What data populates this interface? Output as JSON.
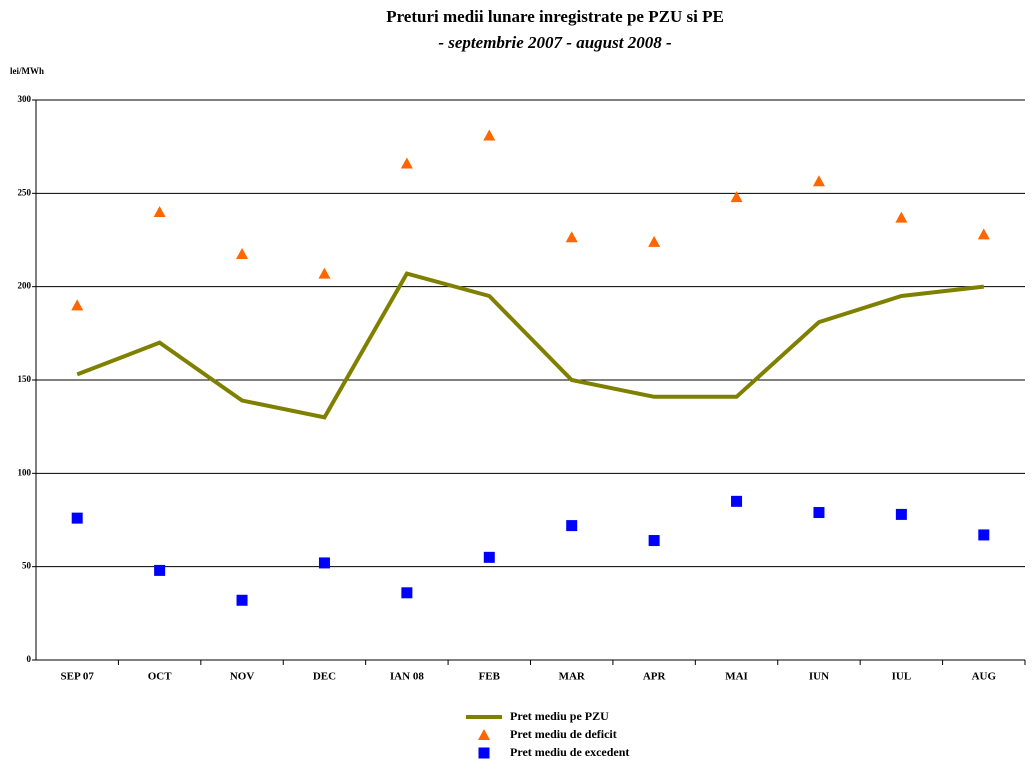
{
  "chart_data": {
    "type": "line",
    "title": "Preturi medii lunare inregistrate pe PZU si PE",
    "subtitle": "- septembrie 2007 - august 2008 -",
    "y_label": "lei/MWh",
    "categories": [
      "SEP 07",
      "OCT",
      "NOV",
      "DEC",
      "IAN 08",
      "FEB",
      "MAR",
      "APR",
      "MAI",
      "IUN",
      "IUL",
      "AUG"
    ],
    "series": [
      {
        "name": "Pret mediu pe PZU",
        "color": "#808000",
        "marker": "line",
        "values": [
          153,
          170,
          139,
          130,
          207,
          195,
          150,
          141,
          141,
          181,
          195,
          200
        ]
      },
      {
        "name": "Pret mediu de deficit",
        "color": "#ff6600",
        "marker": "triangle",
        "values": [
          190,
          240,
          217.5,
          207,
          266,
          281,
          226.5,
          224,
          248,
          256.5,
          237,
          228
        ]
      },
      {
        "name": "Pret mediu de excedent",
        "color": "#0000ff",
        "marker": "square",
        "values": [
          76,
          48,
          32,
          52,
          36,
          55,
          72,
          64,
          85,
          79,
          78,
          67
        ]
      }
    ],
    "ylim": [
      0,
      300
    ],
    "yticks": [
      0,
      50,
      100,
      150,
      200,
      250,
      300
    ],
    "grid": true,
    "legend": "bottom"
  }
}
